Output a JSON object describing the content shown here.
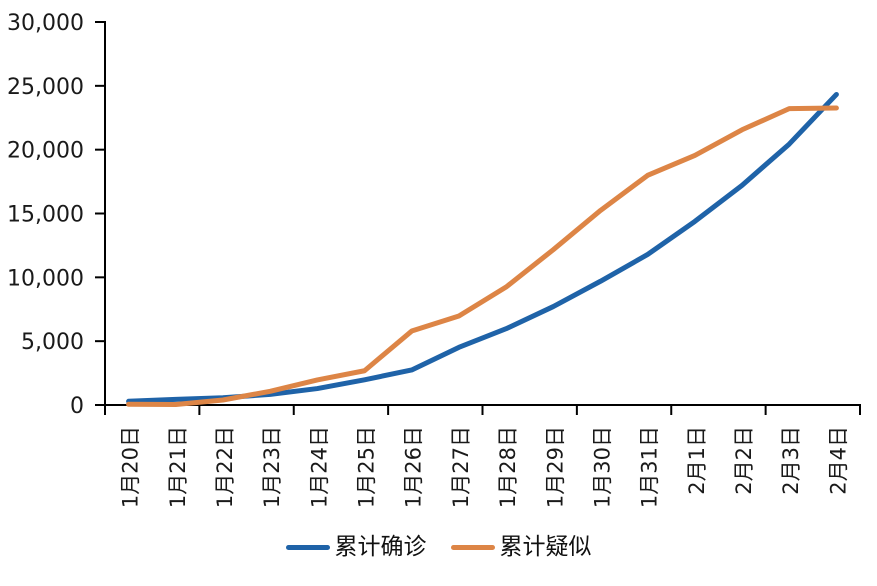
{
  "chart_data": {
    "type": "line",
    "title": "",
    "xlabel": "",
    "ylabel": "",
    "categories": [
      "1月20日",
      "1月21日",
      "1月22日",
      "1月23日",
      "1月24日",
      "1月25日",
      "1月26日",
      "1月27日",
      "1月28日",
      "1月29日",
      "1月30日",
      "1月31日",
      "2月1日",
      "2月2日",
      "2月3日",
      "2月4日"
    ],
    "series": [
      {
        "name": "累计确诊",
        "color": "#1F63A8",
        "values": [
          291,
          440,
          571,
          830,
          1287,
          1975,
          2744,
          4515,
          5974,
          7711,
          9692,
          11791,
          14380,
          17205,
          20438,
          24324
        ]
      },
      {
        "name": "累计疑似",
        "color": "#DD8546",
        "values": [
          54,
          37,
          393,
          1072,
          1965,
          2684,
          5794,
          6973,
          9239,
          12167,
          15238,
          17988,
          19544,
          21558,
          23214,
          23260
        ]
      }
    ],
    "ylim": [
      0,
      30000
    ],
    "ytick_step": 5000,
    "ytick_labels": [
      "0",
      "5,000",
      "10,000",
      "15,000",
      "20,000",
      "25,000",
      "30,000"
    ],
    "xtick_every_n_categories": 2,
    "grid": false,
    "legend_position": "bottom",
    "axis_color": "#000000",
    "text_color": "#1a1a1a",
    "background": "#ffffff",
    "line_width": 5
  }
}
